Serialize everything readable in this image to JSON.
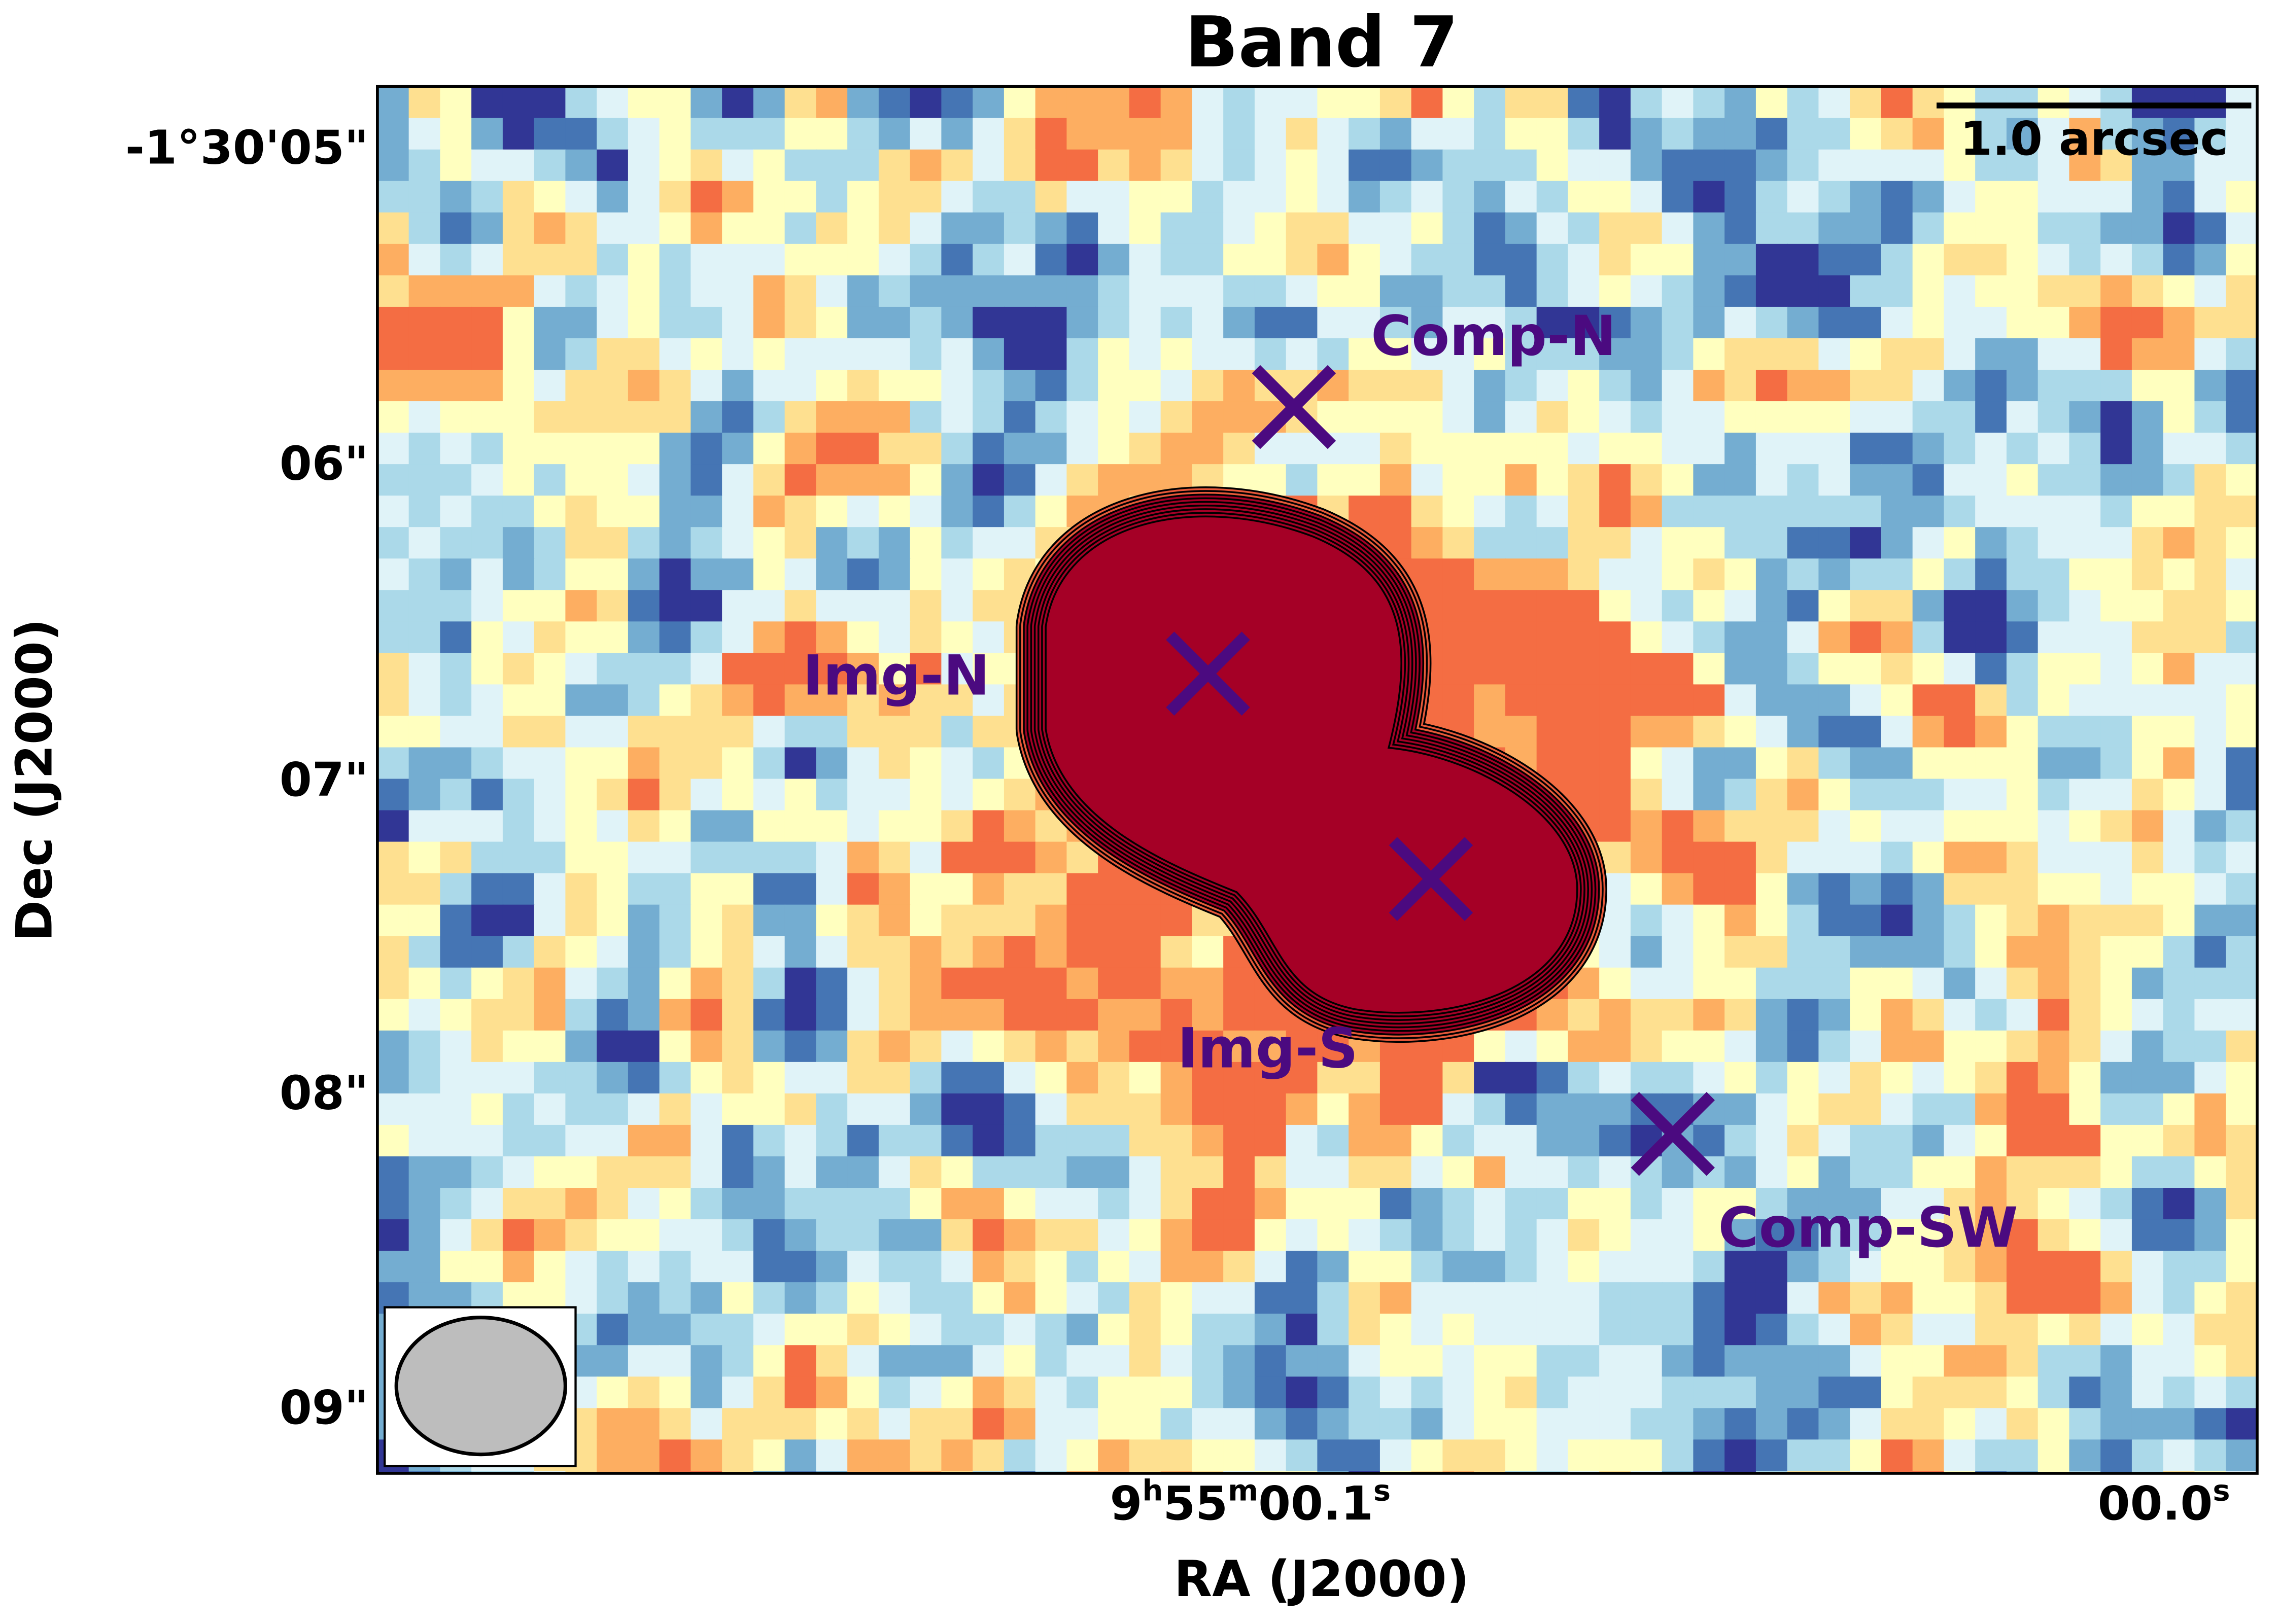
{
  "title": "Band 7",
  "axes": {
    "x_label": "RA (J2000)",
    "y_label": "Dec (J2000)",
    "y_ticks": [
      "-1°30'05\"",
      "06\"",
      "07\"",
      "08\"",
      "09\""
    ],
    "x_ticks": [
      {
        "parts": [
          "9",
          "h",
          "55",
          "m",
          "00.1",
          "s"
        ]
      },
      {
        "parts": [
          "00.0",
          "s"
        ]
      }
    ]
  },
  "scale_bar": "1.0 arcsec",
  "annotations": [
    "Comp-N",
    "Img-N",
    "Img-S",
    "Comp-SW"
  ]
}
